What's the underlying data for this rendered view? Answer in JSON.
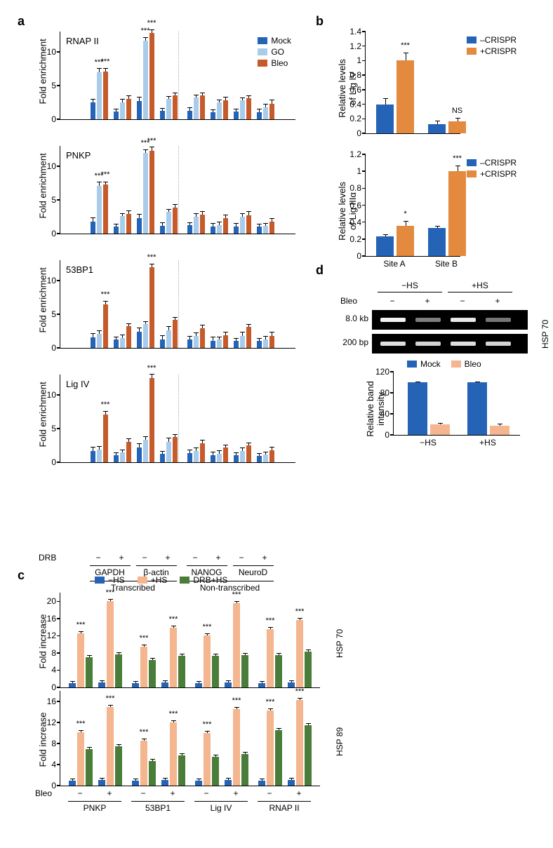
{
  "panel_labels": {
    "a": "a",
    "b": "b",
    "c": "c",
    "d": "d"
  },
  "colors": {
    "mock": "#2563b7",
    "go": "#a9cceb",
    "bleo": "#c55a2a",
    "noCrispr": "#2563b7",
    "crispr": "#e38a3e",
    "noHS": "#2563b7",
    "hs": "#f4b58f",
    "drbhs": "#4a7d3a",
    "mockD": "#2563b7",
    "bleoD": "#f4b58f"
  },
  "panelA": {
    "charts": [
      {
        "title": "RNAP II",
        "ymax": 13,
        "yticks": [
          0,
          5,
          10
        ],
        "data": [
          {
            "mock": 2.5,
            "go": 7.0,
            "bleo": 7.1,
            "sig": {
              "go": "***",
              "bleo": "***"
            }
          },
          {
            "mock": 1.1,
            "go": 2.5,
            "bleo": 3.0
          },
          {
            "mock": 2.7,
            "go": 11.7,
            "bleo": 12.8,
            "sig": {
              "go": "***",
              "bleo": "***"
            }
          },
          {
            "mock": 1.2,
            "go": 3.0,
            "bleo": 3.5
          },
          {
            "mock": 1.3,
            "go": 3.2,
            "bleo": 3.5
          },
          {
            "mock": 1.0,
            "go": 2.5,
            "bleo": 2.8
          },
          {
            "mock": 1.1,
            "go": 2.8,
            "bleo": 3.1
          },
          {
            "mock": 1.0,
            "go": 1.8,
            "bleo": 2.3
          }
        ]
      },
      {
        "title": "PNKP",
        "ymax": 13,
        "yticks": [
          0,
          5,
          10
        ],
        "data": [
          {
            "mock": 1.8,
            "go": 7.1,
            "bleo": 7.3,
            "sig": {
              "go": "***",
              "bleo": "***"
            }
          },
          {
            "mock": 1.0,
            "go": 2.6,
            "bleo": 2.9
          },
          {
            "mock": 2.3,
            "go": 12.0,
            "bleo": 12.3,
            "sig": {
              "go": "***",
              "bleo": "***"
            }
          },
          {
            "mock": 1.1,
            "go": 3.2,
            "bleo": 3.8
          },
          {
            "mock": 1.2,
            "go": 2.5,
            "bleo": 2.8
          },
          {
            "mock": 1.0,
            "go": 1.3,
            "bleo": 2.3
          },
          {
            "mock": 1.0,
            "go": 2.5,
            "bleo": 2.7
          },
          {
            "mock": 1.0,
            "go": 1.1,
            "bleo": 1.8
          }
        ]
      },
      {
        "title": "53BP1",
        "ymax": 13,
        "yticks": [
          0,
          5,
          10
        ],
        "data": [
          {
            "mock": 1.6,
            "go": 2.1,
            "bleo": 6.5,
            "sig": {
              "bleo": "***"
            }
          },
          {
            "mock": 1.2,
            "go": 1.5,
            "bleo": 3.2
          },
          {
            "mock": 2.4,
            "go": 3.5,
            "bleo": 12.0,
            "sig": {
              "bleo": "***"
            }
          },
          {
            "mock": 1.3,
            "go": 2.6,
            "bleo": 4.2
          },
          {
            "mock": 1.3,
            "go": 1.8,
            "bleo": 2.9
          },
          {
            "mock": 1.0,
            "go": 1.2,
            "bleo": 1.9
          },
          {
            "mock": 1.0,
            "go": 1.8,
            "bleo": 3.1
          },
          {
            "mock": 1.0,
            "go": 1.2,
            "bleo": 1.8
          }
        ]
      },
      {
        "title": "Lig IV",
        "ymax": 13,
        "yticks": [
          0,
          5,
          10
        ],
        "data": [
          {
            "mock": 1.7,
            "go": 1.9,
            "bleo": 7.1,
            "sig": {
              "bleo": "***"
            }
          },
          {
            "mock": 1.0,
            "go": 1.5,
            "bleo": 3.0
          },
          {
            "mock": 2.2,
            "go": 3.3,
            "bleo": 12.5,
            "sig": {
              "bleo": "***"
            }
          },
          {
            "mock": 1.2,
            "go": 3.0,
            "bleo": 3.7
          },
          {
            "mock": 1.4,
            "go": 1.7,
            "bleo": 2.8
          },
          {
            "mock": 1.0,
            "go": 1.2,
            "bleo": 2.2
          },
          {
            "mock": 1.0,
            "go": 1.7,
            "bleo": 2.5
          },
          {
            "mock": 0.9,
            "go": 1.1,
            "bleo": 1.8
          }
        ]
      }
    ],
    "ylabel": "Fold enrichment",
    "legend": [
      "Mock",
      "GO",
      "Bleo"
    ],
    "xgroups": [
      "−",
      "+",
      "−",
      "+",
      "−",
      "+",
      "−",
      "+"
    ],
    "drbLabel": "DRB",
    "genes": [
      "GAPDH",
      "β-actin",
      "NANOG",
      "NeuroD"
    ],
    "categories": [
      "Transcribed",
      "Non-transcribed"
    ]
  },
  "panelB": {
    "charts": [
      {
        "ylabel": "Relative levels\nof Lig IV",
        "ymax": 1.4,
        "yticks": [
          0,
          0.2,
          0.4,
          0.6,
          0.8,
          1.0,
          1.2,
          1.4
        ],
        "data": [
          {
            "no": 0.4,
            "yes": 1.0,
            "noerr": 0.08,
            "yeserr": 0.11,
            "sig": "***"
          },
          {
            "no": 0.13,
            "yes": 0.16,
            "noerr": 0.04,
            "yeserr": 0.05,
            "sig": "NS"
          }
        ]
      },
      {
        "ylabel": "Relative levels\nof Lig IIIα",
        "ymax": 1.2,
        "yticks": [
          0,
          0.2,
          0.4,
          0.6,
          0.8,
          1.0,
          1.2
        ],
        "data": [
          {
            "no": 0.23,
            "yes": 0.36,
            "noerr": 0.03,
            "yeserr": 0.05,
            "sig": "*"
          },
          {
            "no": 0.33,
            "yes": 1.0,
            "noerr": 0.03,
            "yeserr": 0.07,
            "sig": "***"
          }
        ]
      }
    ],
    "legend": [
      "–CRISPR",
      "+CRISPR"
    ],
    "xlabels": [
      "Site A",
      "Site B"
    ]
  },
  "panelC": {
    "ylabel": "Fold increase",
    "legend": [
      "−HS",
      "+HS",
      "DRB+HS"
    ],
    "genes": [
      "HSP 70",
      "HSP 89"
    ],
    "charts": [
      {
        "ymax": 22,
        "yticks": [
          0,
          4,
          8,
          12,
          16,
          20
        ],
        "groups": [
          {
            "no": 1,
            "hs": 12.5,
            "drb": 7.0,
            "sig": "***"
          },
          {
            "no": 1.2,
            "hs": 20.0,
            "drb": 7.7,
            "sig": "***"
          },
          {
            "no": 1,
            "hs": 9.5,
            "drb": 6.3,
            "sig": "***"
          },
          {
            "no": 1.1,
            "hs": 13.8,
            "drb": 7.4,
            "sig": "***"
          },
          {
            "no": 1,
            "hs": 12.0,
            "drb": 7.3,
            "sig": "***"
          },
          {
            "no": 1.1,
            "hs": 19.5,
            "drb": 7.5,
            "sig": "***"
          },
          {
            "no": 1,
            "hs": 13.6,
            "drb": 7.5,
            "sig": "***"
          },
          {
            "no": 1.2,
            "hs": 15.7,
            "drb": 8.3,
            "sig": "***"
          }
        ]
      },
      {
        "ymax": 18,
        "yticks": [
          0,
          4,
          8,
          12,
          16
        ],
        "groups": [
          {
            "no": 1,
            "hs": 10.2,
            "drb": 7.0,
            "sig": "***"
          },
          {
            "no": 1.1,
            "hs": 15.0,
            "drb": 7.5,
            "sig": "***"
          },
          {
            "no": 1,
            "hs": 8.5,
            "drb": 4.7,
            "sig": "***"
          },
          {
            "no": 1.1,
            "hs": 12.0,
            "drb": 5.7,
            "sig": "***"
          },
          {
            "no": 1,
            "hs": 10.0,
            "drb": 5.5,
            "sig": "***"
          },
          {
            "no": 1.1,
            "hs": 14.5,
            "drb": 6.0,
            "sig": "***"
          },
          {
            "no": 1,
            "hs": 14.3,
            "drb": 10.5,
            "sig": "***"
          },
          {
            "no": 1.1,
            "hs": 16.3,
            "drb": 11.5,
            "sig": "***"
          }
        ]
      }
    ],
    "bleoLabel": "Bleo",
    "bleoTicks": [
      "−",
      "+",
      "−",
      "+",
      "−",
      "+",
      "−",
      "+"
    ],
    "proteins": [
      "PNKP",
      "53BP1",
      "Lig IV",
      "RNAP II"
    ]
  },
  "panelD": {
    "hsLabels": [
      "−HS",
      "+HS"
    ],
    "bleoLabel": "Bleo",
    "bleoTicks": [
      "−",
      "+",
      "−",
      "+"
    ],
    "sizeLabels": [
      "8.0 kb",
      "200 bp"
    ],
    "sideLabel": "HSP 70",
    "gel": [
      [
        {
          "i": 0.95
        },
        {
          "i": 0.35
        },
        {
          "i": 0.9
        },
        {
          "i": 0.3
        }
      ],
      [
        {
          "i": 0.85
        },
        {
          "i": 0.8
        },
        {
          "i": 0.85
        },
        {
          "i": 0.8
        }
      ]
    ],
    "chart": {
      "ylabel": "Relative band\nintensity",
      "ymax": 120,
      "yticks": [
        0,
        40,
        80,
        120
      ],
      "legend": [
        "Mock",
        "Bleo"
      ],
      "data": [
        {
          "mock": 100,
          "bleo": 20,
          "merr": 2,
          "berr": 3
        },
        {
          "mock": 100,
          "bleo": 17,
          "merr": 2,
          "berr": 5
        }
      ],
      "xlabels": [
        "−HS",
        "+HS"
      ]
    }
  }
}
